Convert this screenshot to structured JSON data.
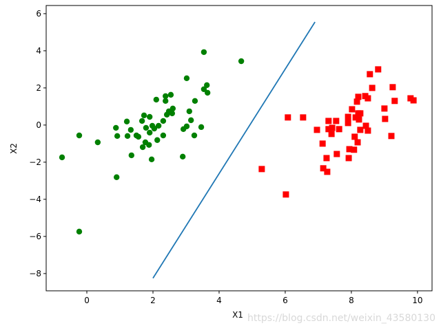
{
  "chart_data": {
    "type": "scatter",
    "xlabel": "X1",
    "ylabel": "X2",
    "watermark": "https://blog.csdn.net/weixin_43580130",
    "xlim": [
      -1.23,
      10.44
    ],
    "ylim": [
      -8.93,
      6.44
    ],
    "xticks": [
      0,
      2,
      4,
      6,
      8,
      10
    ],
    "yticks": [
      {
        "value": -8,
        "label": "−8"
      },
      {
        "value": -6,
        "label": "−6"
      },
      {
        "value": -4,
        "label": "−4"
      },
      {
        "value": -2,
        "label": "−2"
      },
      0,
      2,
      4,
      6
    ],
    "series": [
      {
        "color": "green",
        "marker": "circle",
        "x": [
          -0.75,
          -0.23,
          -0.23,
          0.33,
          0.88,
          0.92,
          0.9,
          1.21,
          1.23,
          1.33,
          1.35,
          1.5,
          1.56,
          1.67,
          1.73,
          1.79,
          1.69,
          1.77,
          1.9,
          1.9,
          1.88,
          1.96,
          1.98,
          2.04,
          2.1,
          2.13,
          2.17,
          2.31,
          2.31,
          2.38,
          2.38,
          2.42,
          2.48,
          2.54,
          2.58,
          2.6,
          2.9,
          2.92,
          3.02,
          3.02,
          3.1,
          3.15,
          3.25,
          3.27,
          3.46,
          3.54,
          3.54,
          3.63,
          3.65,
          4.67
        ],
        "y": [
          -1.74,
          -0.56,
          -5.74,
          -0.93,
          -0.15,
          -0.59,
          -2.81,
          0.19,
          -0.59,
          -0.26,
          -1.63,
          -0.56,
          -0.63,
          0.22,
          0.52,
          -0.15,
          -1.19,
          -0.93,
          0.44,
          -0.41,
          -1.07,
          -1.85,
          -0.04,
          -0.19,
          1.37,
          -0.81,
          -0.04,
          0.22,
          -0.56,
          1.56,
          1.3,
          0.56,
          0.74,
          1.63,
          0.63,
          0.89,
          -1.7,
          -0.22,
          -0.07,
          2.52,
          0.74,
          0.26,
          -0.56,
          1.3,
          -0.11,
          3.93,
          1.93,
          2.15,
          1.74,
          3.44
        ]
      },
      {
        "color": "red",
        "marker": "square",
        "x": [
          5.29,
          6.02,
          6.08,
          6.54,
          6.96,
          7.13,
          7.15,
          7.25,
          7.27,
          7.31,
          7.31,
          7.4,
          7.42,
          7.54,
          7.56,
          7.63,
          7.9,
          7.9,
          7.92,
          7.94,
          8.02,
          8.08,
          8.1,
          8.13,
          8.17,
          8.19,
          8.21,
          8.21,
          8.23,
          8.27,
          8.27,
          8.42,
          8.44,
          8.5,
          8.5,
          8.56,
          8.63,
          8.81,
          9.0,
          9.02,
          9.21,
          9.25,
          9.31,
          9.79,
          9.88
        ],
        "y": [
          -2.37,
          -3.74,
          0.41,
          0.41,
          -0.26,
          -1.0,
          -2.33,
          -1.78,
          -2.52,
          0.22,
          -0.22,
          -0.48,
          -0.15,
          0.22,
          -1.56,
          -0.22,
          0.44,
          0.11,
          -1.78,
          -1.3,
          0.85,
          -1.33,
          -0.63,
          0.41,
          1.26,
          -0.93,
          1.52,
          0.63,
          0.3,
          0.63,
          -0.26,
          1.56,
          -0.04,
          1.44,
          -0.3,
          2.74,
          2.0,
          3.0,
          0.89,
          0.33,
          -0.59,
          2.04,
          1.3,
          1.44,
          1.33
        ]
      }
    ],
    "lines": [
      {
        "color": "#1f77b4",
        "x": [
          2.0,
          6.9
        ],
        "y": [
          -8.25,
          5.55
        ]
      }
    ]
  }
}
